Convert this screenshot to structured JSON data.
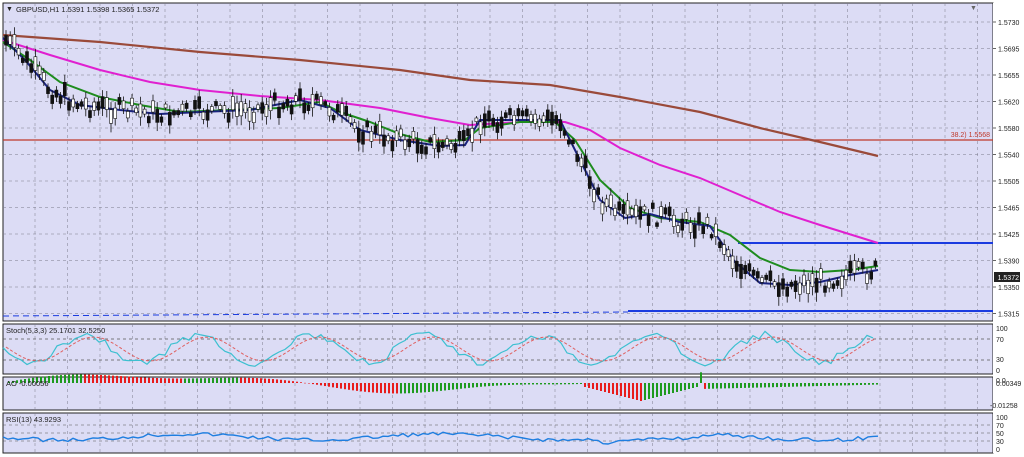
{
  "main": {
    "symbol_info": "GBPUSD,H1  1.5391 1.5398 1.5365 1.5372",
    "price_ticks": [
      "1.5730",
      "1.5695",
      "1.5655",
      "1.5620",
      "1.5580",
      "1.5540",
      "1.5505",
      "1.5465",
      "1.5425",
      "1.5390",
      "1.5350",
      "1.5315"
    ],
    "fib_label": "38.2) 1.5568",
    "current_price": "1.5372"
  },
  "stoch": {
    "label": "Stoch(5,3,3) 25.1701 32.5250",
    "ticks": [
      "100",
      "70",
      "30",
      "0"
    ]
  },
  "ao": {
    "label": "AO -0.00056",
    "ticks": [
      "0.00349",
      "0.0",
      "-0.01258"
    ]
  },
  "rsi": {
    "label": "RSI(13) 43.9293",
    "ticks": [
      "100",
      "70",
      "50",
      "30",
      "0"
    ]
  },
  "colors": {
    "background": "#dcdcf5",
    "grid": "#7a7a8a",
    "ema_fast": "#1a237e",
    "ema_mid": "#1e8c1e",
    "ema_slow": "#e020d0",
    "ema_long": "#9a4a3a",
    "fib_line": "#c0392b",
    "support_line": "#1a3be0",
    "stoch_main": "#3cc0d0",
    "stoch_signal": "#e06060",
    "ao_up": "#1e9a1e",
    "ao_down": "#e81c1c",
    "rsi": "#1e7ee0"
  }
}
